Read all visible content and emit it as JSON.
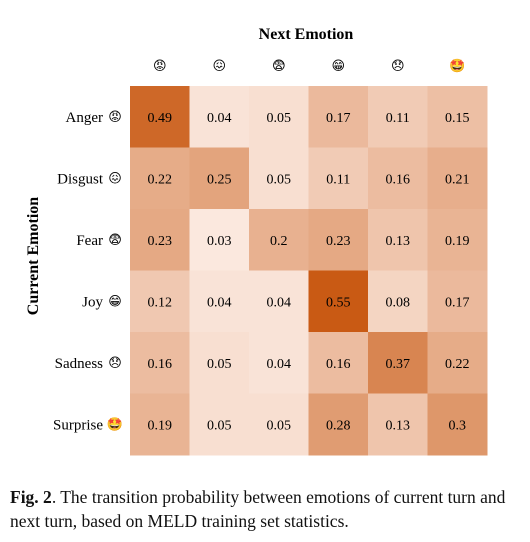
{
  "chart_data": {
    "type": "heatmap",
    "title": "Next Emotion",
    "ylabel": "Current Emotion",
    "x_emojis": [
      "😡",
      "😖",
      "😨",
      "😁",
      "😞",
      "🤩"
    ],
    "rows": [
      {
        "label": "Anger",
        "emoji": "😡"
      },
      {
        "label": "Disgust",
        "emoji": "😖"
      },
      {
        "label": "Fear",
        "emoji": "😨"
      },
      {
        "label": "Joy",
        "emoji": "😁"
      },
      {
        "label": "Sadness",
        "emoji": "😞"
      },
      {
        "label": "Surprise",
        "emoji": "🤩"
      }
    ],
    "values": [
      [
        0.49,
        0.04,
        0.05,
        0.17,
        0.11,
        0.15
      ],
      [
        0.22,
        0.25,
        0.05,
        0.11,
        0.16,
        0.21
      ],
      [
        0.23,
        0.03,
        0.2,
        0.23,
        0.13,
        0.19
      ],
      [
        0.12,
        0.04,
        0.04,
        0.55,
        0.08,
        0.17
      ],
      [
        0.16,
        0.05,
        0.04,
        0.16,
        0.37,
        0.22
      ],
      [
        0.19,
        0.05,
        0.05,
        0.28,
        0.13,
        0.3
      ]
    ],
    "color_low": "#fbe8de",
    "color_high": "#c95a14"
  },
  "caption": {
    "label": "Fig. 2",
    "text": ". The transition probability between emotions of current turn and next turn, based on MELD training set statistics."
  }
}
